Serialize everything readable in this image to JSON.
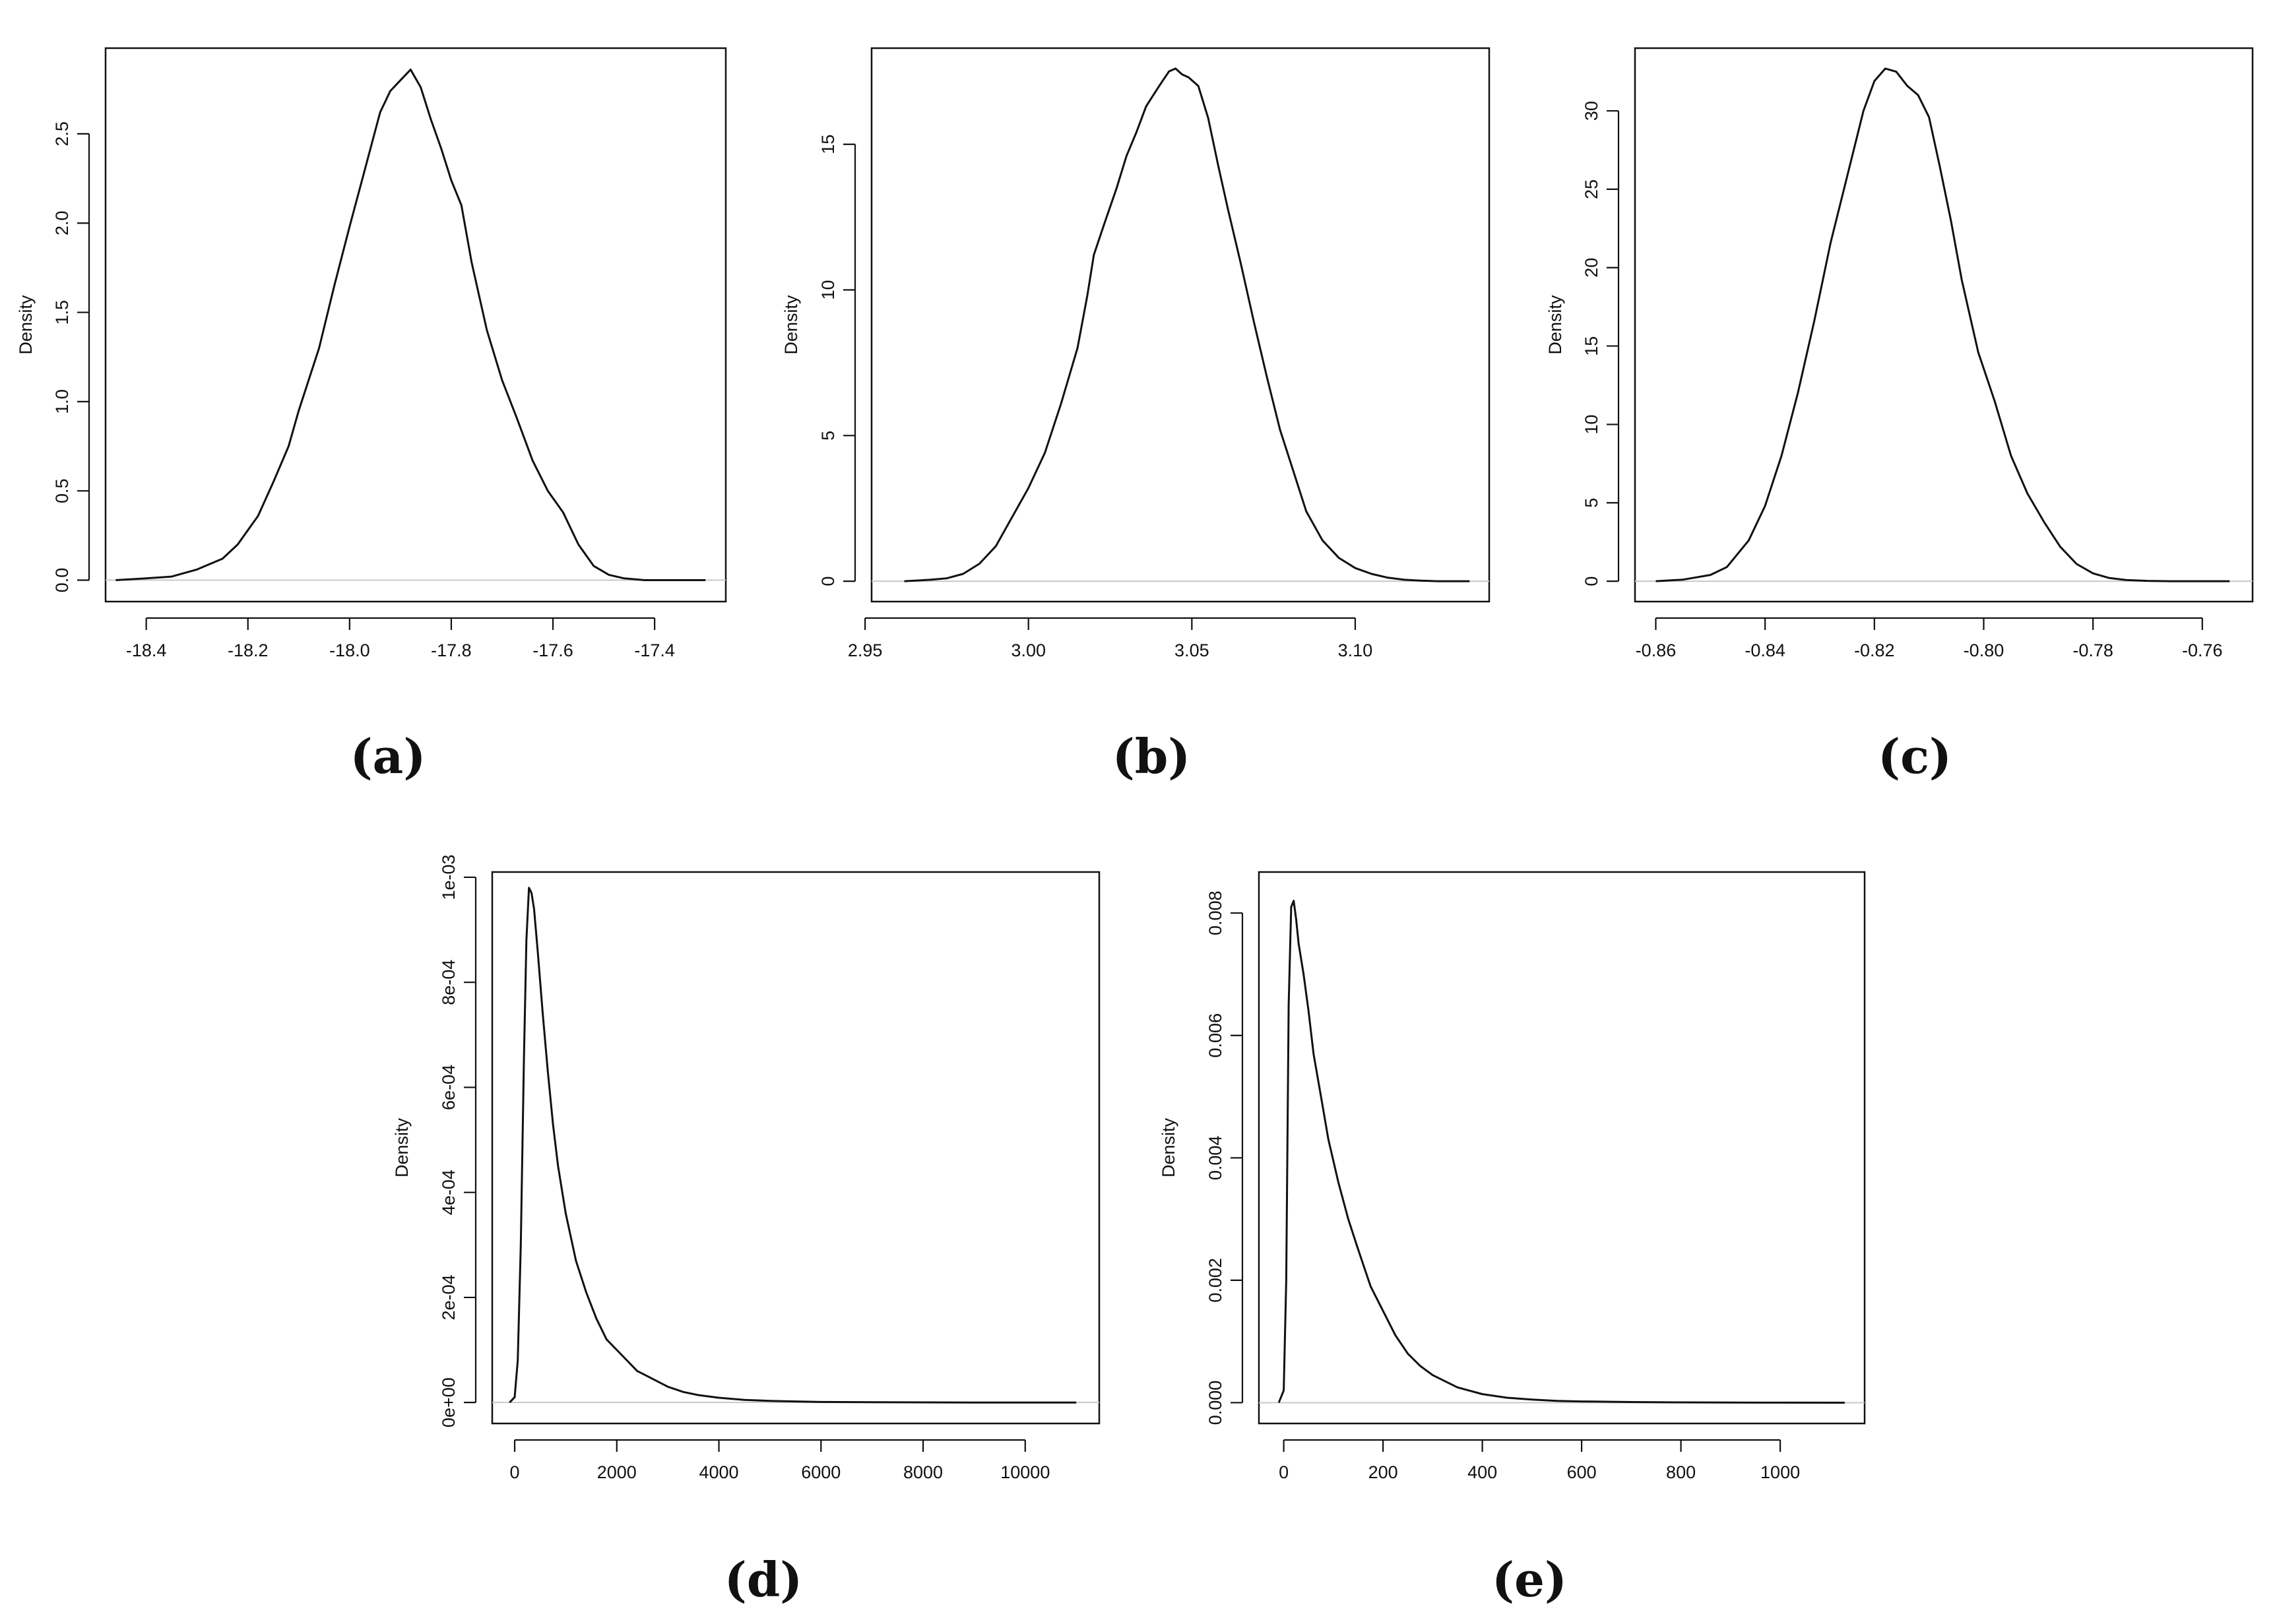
{
  "chart_data": [
    {
      "type": "line",
      "panel_label": "(a)",
      "ylabel": "Density",
      "xlabel": "",
      "x_ticks": [
        "-18.4",
        "-18.2",
        "-18.0",
        "-17.8",
        "-17.6",
        "-17.4"
      ],
      "y_ticks": [
        "0.0",
        "0.5",
        "1.0",
        "1.5",
        "2.0",
        "2.5"
      ],
      "xlim": [
        -18.48,
        -17.26
      ],
      "ylim": [
        -0.12,
        2.98
      ],
      "baseline": 0,
      "series": [
        {
          "x": [
            -18.46,
            -18.4,
            -18.35,
            -18.3,
            -18.25,
            -18.22,
            -18.18,
            -18.15,
            -18.12,
            -18.1,
            -18.06,
            -18.03,
            -18.0,
            -17.97,
            -17.94,
            -17.92,
            -17.9,
            -17.88,
            -17.86,
            -17.84,
            -17.82,
            -17.8,
            -17.78,
            -17.76,
            -17.73,
            -17.7,
            -17.67,
            -17.64,
            -17.61,
            -17.58,
            -17.55,
            -17.52,
            -17.49,
            -17.46,
            -17.42,
            -17.38,
            -17.34,
            -17.3
          ],
          "y": [
            0.0,
            0.01,
            0.02,
            0.06,
            0.12,
            0.2,
            0.36,
            0.55,
            0.75,
            0.95,
            1.3,
            1.65,
            1.98,
            2.3,
            2.62,
            2.74,
            2.8,
            2.86,
            2.76,
            2.58,
            2.42,
            2.24,
            2.1,
            1.78,
            1.4,
            1.12,
            0.9,
            0.67,
            0.5,
            0.38,
            0.2,
            0.08,
            0.03,
            0.01,
            0.0,
            0.0,
            0.0,
            0.0
          ]
        }
      ]
    },
    {
      "type": "line",
      "panel_label": "(b)",
      "ylabel": "Density",
      "xlabel": "",
      "x_ticks": [
        "2.95",
        "3.00",
        "3.05",
        "3.10"
      ],
      "y_ticks": [
        "0",
        "5",
        "10",
        "15"
      ],
      "xlim": [
        2.952,
        3.141
      ],
      "ylim": [
        -0.7,
        18.3
      ],
      "baseline": 0,
      "series": [
        {
          "x": [
            2.962,
            2.97,
            2.975,
            2.98,
            2.985,
            2.99,
            2.995,
            3.0,
            3.005,
            3.01,
            3.015,
            3.018,
            3.02,
            3.023,
            3.027,
            3.03,
            3.033,
            3.036,
            3.04,
            3.043,
            3.045,
            3.047,
            3.049,
            3.052,
            3.055,
            3.058,
            3.061,
            3.065,
            3.069,
            3.073,
            3.077,
            3.081,
            3.085,
            3.09,
            3.095,
            3.1,
            3.105,
            3.11,
            3.115,
            3.12,
            3.125,
            3.13,
            3.135
          ],
          "y": [
            0.0,
            0.05,
            0.1,
            0.25,
            0.6,
            1.2,
            2.2,
            3.2,
            4.4,
            6.1,
            8.0,
            9.8,
            11.2,
            12.2,
            13.5,
            14.6,
            15.4,
            16.3,
            17.0,
            17.5,
            17.6,
            17.4,
            17.3,
            17.0,
            15.9,
            14.3,
            12.8,
            10.9,
            8.9,
            7.0,
            5.2,
            3.8,
            2.4,
            1.4,
            0.8,
            0.45,
            0.25,
            0.12,
            0.05,
            0.02,
            0.0,
            0.0,
            0.0
          ]
        }
      ]
    },
    {
      "type": "line",
      "panel_label": "(c)",
      "ylabel": "Density",
      "xlabel": "",
      "x_ticks": [
        "-0.86",
        "-0.84",
        "-0.82",
        "-0.80",
        "-0.78",
        "-0.76"
      ],
      "y_ticks": [
        "0",
        "5",
        "10",
        "15",
        "20",
        "25",
        "30"
      ],
      "xlim": [
        -0.8638,
        -0.7508
      ],
      "ylim": [
        -1.3,
        34.0
      ],
      "baseline": 0,
      "series": [
        {
          "x": [
            -0.86,
            -0.855,
            -0.85,
            -0.847,
            -0.843,
            -0.84,
            -0.837,
            -0.834,
            -0.831,
            -0.828,
            -0.825,
            -0.822,
            -0.82,
            -0.818,
            -0.816,
            -0.814,
            -0.812,
            -0.81,
            -0.808,
            -0.806,
            -0.804,
            -0.801,
            -0.798,
            -0.795,
            -0.792,
            -0.789,
            -0.786,
            -0.783,
            -0.78,
            -0.777,
            -0.774,
            -0.77,
            -0.766,
            -0.762,
            -0.758,
            -0.755
          ],
          "y": [
            0.0,
            0.1,
            0.4,
            0.9,
            2.6,
            4.8,
            8.0,
            12.0,
            16.6,
            21.6,
            25.8,
            30.0,
            31.9,
            32.7,
            32.5,
            31.6,
            31.0,
            29.6,
            26.4,
            23.0,
            19.2,
            14.6,
            11.5,
            8.0,
            5.6,
            3.8,
            2.2,
            1.1,
            0.5,
            0.2,
            0.08,
            0.02,
            0.0,
            0.0,
            0.0,
            0.0
          ]
        }
      ]
    },
    {
      "type": "line",
      "panel_label": "(d)",
      "ylabel": "Density",
      "xlabel": "",
      "x_ticks": [
        "0",
        "2000",
        "4000",
        "6000",
        "8000",
        "10000"
      ],
      "y_ticks": [
        "0e+00",
        "2e-04",
        "4e-04",
        "6e-04",
        "8e-04",
        "1e-03"
      ],
      "xlim": [
        -440,
        11450
      ],
      "ylim": [
        -4e-05,
        0.00101
      ],
      "baseline": 0,
      "series": [
        {
          "x": [
            -100,
            0,
            60,
            120,
            180,
            230,
            280,
            330,
            380,
            450,
            550,
            650,
            750,
            850,
            1000,
            1200,
            1400,
            1600,
            1800,
            2000,
            2200,
            2400,
            2600,
            2800,
            3000,
            3300,
            3600,
            4000,
            4500,
            5000,
            5500,
            6000,
            7000,
            8000,
            9000,
            10000,
            11000
          ],
          "y": [
            0.0,
            1e-05,
            8e-05,
            0.0003,
            0.00065,
            0.00088,
            0.00098,
            0.00097,
            0.00094,
            0.00086,
            0.00074,
            0.00063,
            0.00053,
            0.00045,
            0.00036,
            0.00027,
            0.00021,
            0.00016,
            0.00012,
            0.0001,
            8e-05,
            6e-05,
            5e-05,
            4e-05,
            3e-05,
            2e-05,
            1.4e-05,
            9e-06,
            5e-06,
            3e-06,
            2e-06,
            1e-06,
            5e-07,
            2e-07,
            0.0,
            0.0,
            0.0
          ]
        }
      ]
    },
    {
      "type": "line",
      "panel_label": "(e)",
      "ylabel": "Density",
      "xlabel": "",
      "x_ticks": [
        "0",
        "200",
        "400",
        "600",
        "800",
        "1000"
      ],
      "y_ticks": [
        "0.000",
        "0.002",
        "0.004",
        "0.006",
        "0.008"
      ],
      "xlim": [
        -50,
        1170
      ],
      "ylim": [
        -0.00034,
        0.00867
      ],
      "baseline": 0,
      "series": [
        {
          "x": [
            -10,
            0,
            5,
            10,
            15,
            20,
            25,
            30,
            40,
            50,
            60,
            75,
            90,
            110,
            130,
            150,
            175,
            200,
            225,
            250,
            275,
            300,
            350,
            400,
            450,
            500,
            550,
            600,
            700,
            800,
            900,
            1000,
            1130
          ],
          "y": [
            0.0,
            0.0002,
            0.002,
            0.0065,
            0.0081,
            0.0082,
            0.0079,
            0.0075,
            0.007,
            0.0064,
            0.0057,
            0.005,
            0.0043,
            0.0036,
            0.003,
            0.0025,
            0.0019,
            0.0015,
            0.0011,
            0.0008,
            0.0006,
            0.00045,
            0.00025,
            0.00014,
            8e-05,
            5e-05,
            3e-05,
            2e-05,
            1e-05,
            5e-06,
            2e-06,
            1e-06,
            0.0
          ]
        }
      ]
    }
  ]
}
